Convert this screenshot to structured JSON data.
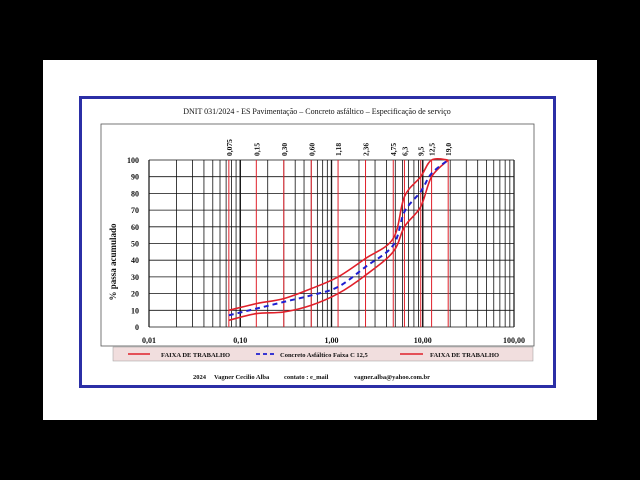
{
  "chart_data": {
    "type": "line",
    "title": "DNIT 031/2024 - ES Pavimentação – Concreto asfáltico – Especificação de serviço",
    "ylabel": "% passa acumulado",
    "xscale": "log",
    "xlim": [
      0.01,
      100
    ],
    "ylim": [
      0,
      100
    ],
    "x_tick_labels": [
      "0,01",
      "0,10",
      "1,00",
      "10,00",
      "100,00"
    ],
    "x_tick_values": [
      0.01,
      0.1,
      1,
      10,
      100
    ],
    "y_tick_values": [
      0,
      10,
      20,
      30,
      40,
      50,
      60,
      70,
      80,
      90,
      100
    ],
    "y_tick_labels": [
      "0",
      "10",
      "20",
      "30",
      "40",
      "50",
      "60",
      "70",
      "80",
      "90",
      "100"
    ],
    "sieve_labels": [
      "0,075",
      "0,15",
      "0,30",
      "0,60",
      "1,18",
      "2,36",
      "4,75",
      "6,3",
      "9,5",
      "12,5",
      "19,0"
    ],
    "sieve_values": [
      0.075,
      0.15,
      0.3,
      0.6,
      1.18,
      2.36,
      4.75,
      6.3,
      9.5,
      12.5,
      19.0
    ],
    "grid": true,
    "legend_position": "bottom",
    "series": [
      {
        "name": "FAIXA DE TRABALHO",
        "color": "#e0202a",
        "dash": "solid",
        "x": [
          0.075,
          0.15,
          0.3,
          0.6,
          1.18,
          2.36,
          4.75,
          6.3,
          9.5,
          12.5,
          19.0
        ],
        "y": [
          4,
          8,
          9,
          13,
          20,
          31,
          45,
          60,
          72,
          90,
          100
        ]
      },
      {
        "name": "Concreto Asfáltico Faixa C 12,5",
        "color": "#1f1fd0",
        "dash": "dashed",
        "x": [
          0.075,
          0.15,
          0.3,
          0.6,
          1.18,
          2.36,
          4.75,
          6.3,
          9.5,
          12.5,
          19.0
        ],
        "y": [
          7,
          11,
          15,
          19,
          24,
          36,
          49,
          69,
          81,
          92,
          100
        ]
      },
      {
        "name": "FAIXA DE TRABALHO",
        "color": "#e0202a",
        "dash": "solid",
        "x": [
          0.075,
          0.15,
          0.3,
          0.6,
          1.18,
          2.36,
          4.75,
          6.3,
          9.5,
          12.5,
          19.0
        ],
        "y": [
          10,
          14,
          17,
          23,
          30,
          41,
          53,
          78,
          90,
          100,
          100
        ]
      }
    ]
  },
  "legend": {
    "item1": "FAIXA DE TRABALHO",
    "item2": "Concreto Asfáltico Faixa C 12,5",
    "item3": "FAIXA DE TRABALHO"
  },
  "footer": {
    "year": "2024",
    "author": "Vagner Cecilio Alba",
    "contact": "contato : e_mail",
    "email": "vagner.alba@yahoo.com.br"
  },
  "colors": {
    "frame": "#2b2fa6",
    "red_band": "#e0202a",
    "blue_curve": "#1f1fd0",
    "legend_bg": "#f1dede"
  }
}
